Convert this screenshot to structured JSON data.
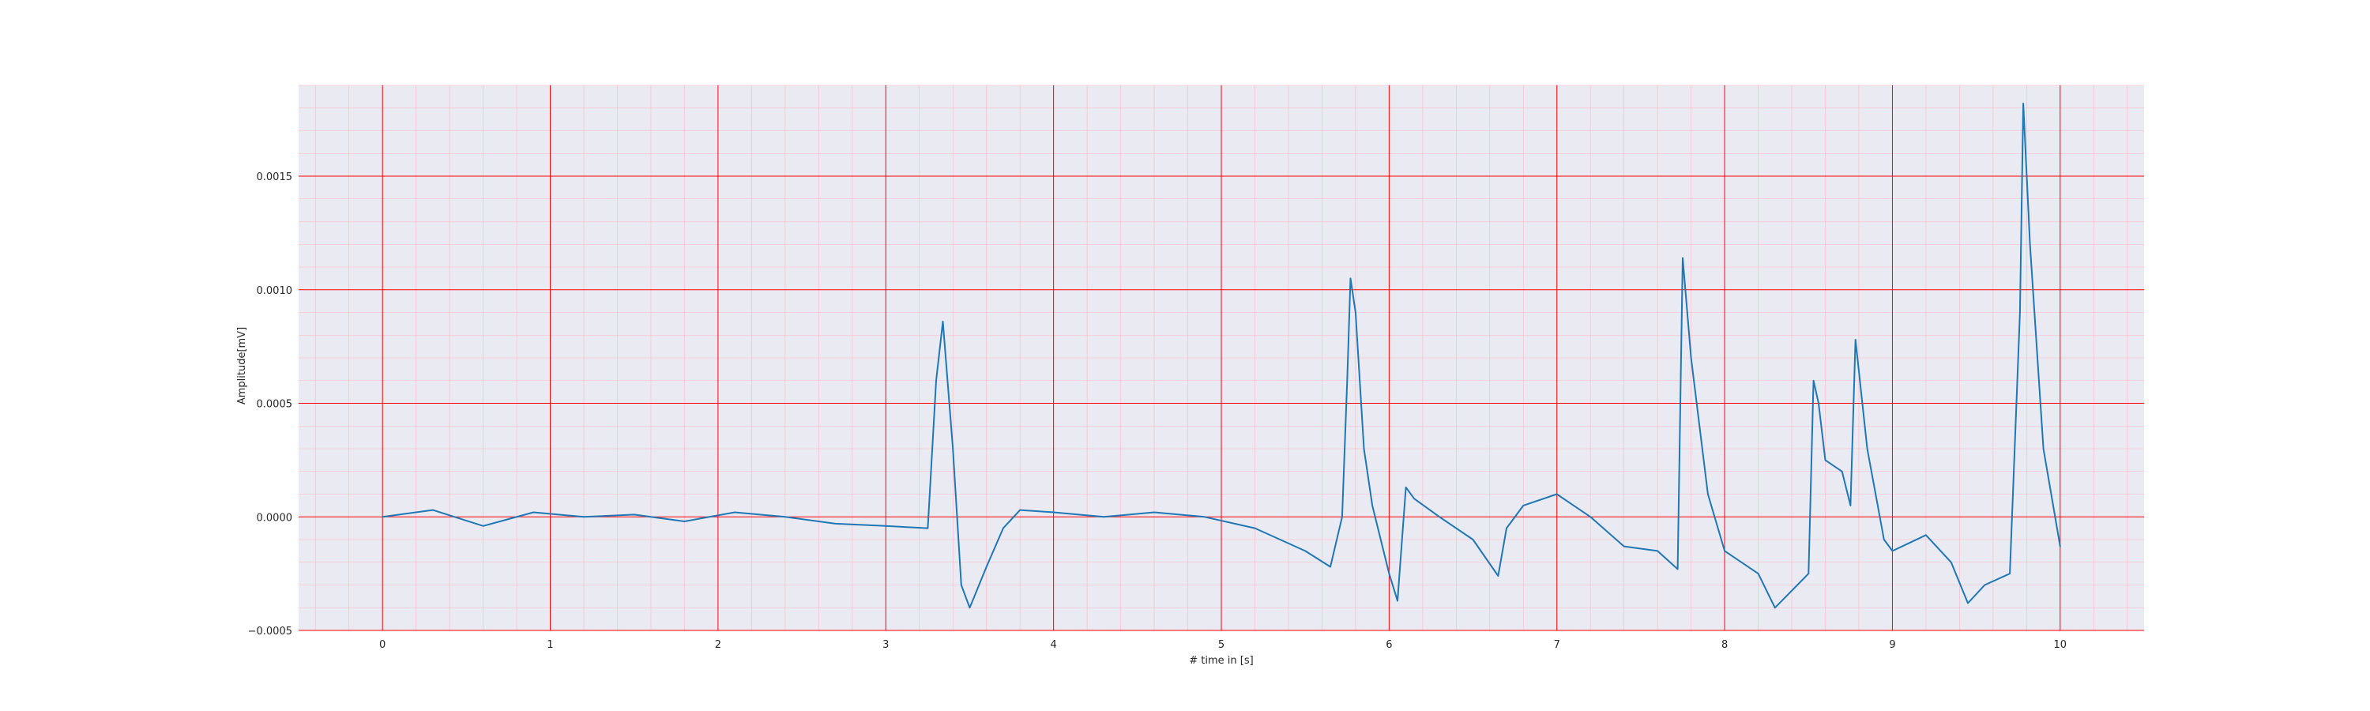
{
  "chart_data": {
    "type": "line",
    "title": "",
    "xlabel": "# time in [s]",
    "ylabel": "Amplitude[mV]",
    "xlim": [
      -0.5,
      10.5
    ],
    "ylim": [
      -0.0005,
      0.0019
    ],
    "xticks": [
      0,
      1,
      2,
      3,
      4,
      5,
      6,
      7,
      8,
      9,
      10
    ],
    "xtick_labels": [
      "0",
      "1",
      "2",
      "3",
      "4",
      "5",
      "6",
      "7",
      "8",
      "9",
      "10"
    ],
    "yticks": [
      -0.0005,
      0.0,
      0.0005,
      0.001,
      0.0015
    ],
    "ytick_labels": [
      "−0.0005",
      "0.0000",
      "0.0005",
      "0.0010",
      "0.0015"
    ],
    "grid": "on",
    "minor_grid": "on",
    "colors": {
      "line": "#1f77b4",
      "major_grid": "#ff0000",
      "minor_grid": "#ffb6c1",
      "plot_background": "#eaeaf2"
    },
    "series": [
      {
        "x": [
          0,
          0.3,
          0.6,
          0.9,
          1.2,
          1.5,
          1.8,
          2.1,
          2.4,
          2.7,
          3.0,
          3.25,
          3.3,
          3.34,
          3.4,
          3.45,
          3.5,
          3.6,
          3.7,
          3.8,
          4.0,
          4.3,
          4.6,
          4.9,
          5.2,
          5.5,
          5.65,
          5.72,
          5.75,
          5.77,
          5.8,
          5.85,
          5.9,
          6.0,
          6.05,
          6.1,
          6.15,
          6.3,
          6.5,
          6.65,
          6.7,
          6.8,
          7.0,
          7.2,
          7.4,
          7.6,
          7.72,
          7.75,
          7.8,
          7.9,
          8.0,
          8.2,
          8.3,
          8.5,
          8.53,
          8.56,
          8.6,
          8.7,
          8.75,
          8.78,
          8.85,
          8.95,
          9.0,
          9.2,
          9.35,
          9.45,
          9.55,
          9.7,
          9.76,
          9.78,
          9.82,
          9.9,
          10.0
        ],
        "y": [
          0.0,
          3e-05,
          -4e-05,
          2e-05,
          0.0,
          1e-05,
          -2e-05,
          2e-05,
          0.0,
          -3e-05,
          -4e-05,
          -5e-05,
          0.0006,
          0.00086,
          0.0003,
          -0.0003,
          -0.0004,
          -0.00022,
          -5e-05,
          3e-05,
          2e-05,
          0.0,
          2e-05,
          0.0,
          -5e-05,
          -0.00015,
          -0.00022,
          0.0,
          0.0006,
          0.00105,
          0.0009,
          0.0003,
          5e-05,
          -0.00025,
          -0.00037,
          0.00013,
          8e-05,
          0.0,
          -0.0001,
          -0.00026,
          -5e-05,
          5e-05,
          0.0001,
          0.0,
          -0.00013,
          -0.00015,
          -0.00023,
          0.00114,
          0.0007,
          0.0001,
          -0.00015,
          -0.00025,
          -0.0004,
          -0.00025,
          0.0006,
          0.0005,
          0.00025,
          0.0002,
          5e-05,
          0.00078,
          0.0003,
          -0.0001,
          -0.00015,
          -8e-05,
          -0.0002,
          -0.00038,
          -0.0003,
          -0.00025,
          0.0009,
          0.00182,
          0.0012,
          0.0003,
          -0.00013
        ]
      }
    ]
  }
}
